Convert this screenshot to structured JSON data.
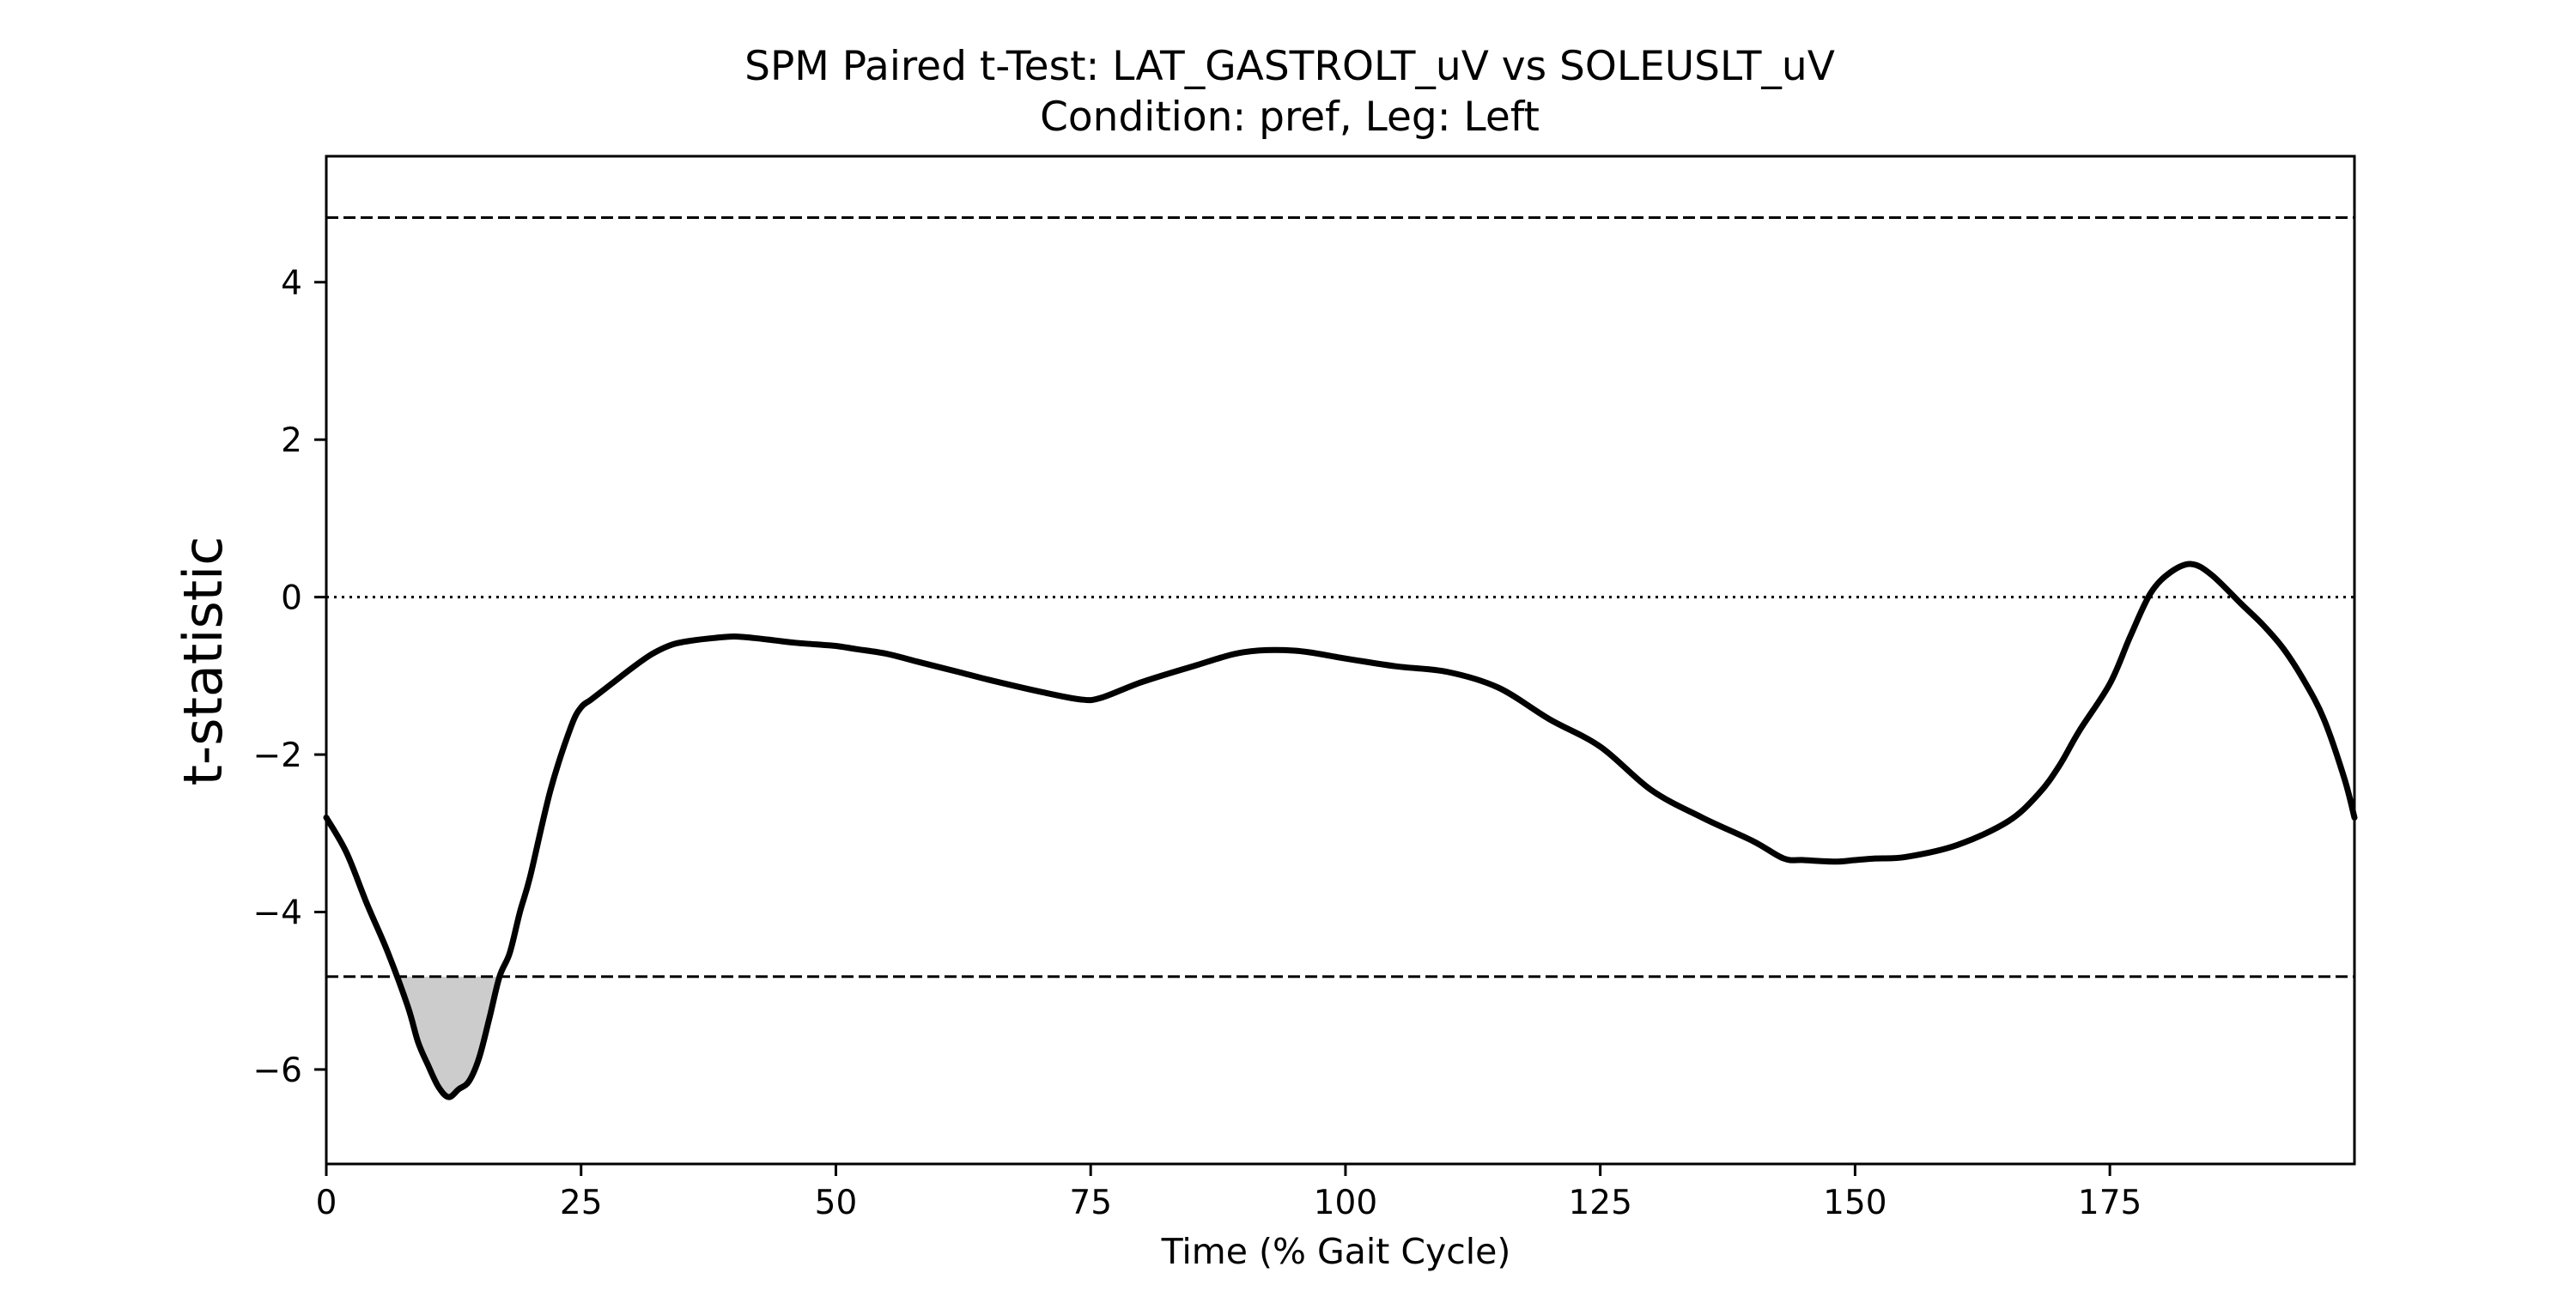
{
  "chart_data": {
    "type": "line",
    "title": "SPM Paired t-Test: LAT_GASTROLT_uV vs SOLEUSLT_uV",
    "subtitle": "Condition: pref, Leg: Left",
    "xlabel": "Time (% Gait Cycle)",
    "ylabel": "t-statistic",
    "xlim": [
      0,
      199
    ],
    "ylim": [
      -7.2,
      5.6
    ],
    "x_ticks": [
      0,
      25,
      50,
      75,
      100,
      125,
      150,
      175
    ],
    "y_ticks": [
      -6,
      -4,
      -2,
      0,
      2,
      4
    ],
    "x_tick_labels": [
      "0",
      "25",
      "50",
      "75",
      "100",
      "125",
      "150",
      "175"
    ],
    "y_tick_labels": [
      "−6",
      "−4",
      "−2",
      "0",
      "2",
      "4"
    ],
    "grid": false,
    "threshold": 4.82,
    "reference_line": 0,
    "cluster_fill_color": "#cccccc",
    "line_color": "#000000",
    "series": [
      {
        "x": [
          0,
          2,
          4,
          6,
          8,
          9,
          10,
          11,
          12,
          13,
          14,
          15,
          16,
          17,
          18,
          19,
          20,
          22,
          24,
          25,
          26,
          28,
          30,
          32,
          34,
          36,
          38,
          40,
          42,
          44,
          46,
          48,
          50,
          52,
          55,
          58,
          62,
          65,
          70,
          74,
          76,
          80,
          85,
          90,
          95,
          100,
          105,
          110,
          115,
          120,
          125,
          130,
          135,
          140,
          143,
          145,
          148,
          150,
          152,
          155,
          160,
          165,
          168,
          170,
          172,
          175,
          177,
          179,
          181,
          183,
          185,
          188,
          190,
          192,
          194,
          196,
          198,
          199
        ],
        "y": [
          -2.8,
          -3.25,
          -3.9,
          -4.5,
          -5.2,
          -5.65,
          -5.95,
          -6.22,
          -6.35,
          -6.25,
          -6.15,
          -5.85,
          -5.35,
          -4.82,
          -4.52,
          -4.0,
          -3.55,
          -2.45,
          -1.65,
          -1.4,
          -1.3,
          -1.1,
          -0.9,
          -0.72,
          -0.6,
          -0.55,
          -0.52,
          -0.5,
          -0.52,
          -0.55,
          -0.58,
          -0.6,
          -0.62,
          -0.66,
          -0.72,
          -0.82,
          -0.95,
          -1.05,
          -1.2,
          -1.3,
          -1.28,
          -1.08,
          -0.88,
          -0.7,
          -0.68,
          -0.78,
          -0.88,
          -0.95,
          -1.15,
          -1.55,
          -1.9,
          -2.45,
          -2.8,
          -3.1,
          -3.32,
          -3.34,
          -3.36,
          -3.34,
          -3.32,
          -3.3,
          -3.15,
          -2.85,
          -2.5,
          -2.15,
          -1.7,
          -1.1,
          -0.5,
          0.05,
          0.32,
          0.42,
          0.28,
          -0.1,
          -0.35,
          -0.65,
          -1.05,
          -1.55,
          -2.3,
          -2.8
        ]
      }
    ]
  }
}
